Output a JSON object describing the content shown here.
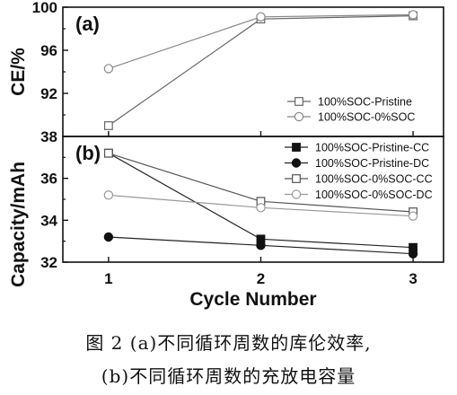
{
  "caption": {
    "line1": "图 2   (a)不同循环周数的库伦效率,",
    "line2": "(b)不同循环周数的充放电容量"
  },
  "chart_data": [
    {
      "panel": "(a)",
      "type": "line",
      "ylabel": "CE/%",
      "xlabel": "",
      "x": [
        1,
        2,
        3
      ],
      "xlim": [
        0.7,
        3.2
      ],
      "ylim": [
        88,
        100
      ],
      "yticks": [
        92,
        96,
        100
      ],
      "legend_position": "bottom-right",
      "series": [
        {
          "name": "100%SOC-Pristine",
          "marker": "open-square",
          "color": "#666666",
          "values": [
            89.0,
            98.9,
            99.2
          ]
        },
        {
          "name": "100%SOC-0%SOC",
          "marker": "open-circle",
          "color": "#888888",
          "values": [
            94.3,
            99.1,
            99.3
          ]
        }
      ]
    },
    {
      "panel": "(b)",
      "type": "line",
      "ylabel": "Capacity/mAh",
      "xlabel": "Cycle Number",
      "x": [
        1,
        2,
        3
      ],
      "xticks": [
        1,
        2,
        3
      ],
      "xlim": [
        0.7,
        3.2
      ],
      "ylim": [
        32,
        38
      ],
      "yticks": [
        32,
        34,
        36,
        38
      ],
      "legend_position": "top-right",
      "series": [
        {
          "name": "100%SOC-Pristine-CC",
          "marker": "filled-square",
          "color": "#222222",
          "values": [
            37.2,
            33.1,
            32.7
          ]
        },
        {
          "name": "100%SOC-Pristine-DC",
          "marker": "filled-circle",
          "color": "#222222",
          "values": [
            33.2,
            32.8,
            32.4
          ]
        },
        {
          "name": "100%SOC-0%SOC-CC",
          "marker": "open-square",
          "color": "#555555",
          "values": [
            37.2,
            34.9,
            34.4
          ]
        },
        {
          "name": "100%SOC-0%SOC-DC",
          "marker": "open-circle",
          "color": "#999999",
          "values": [
            35.2,
            34.6,
            34.2
          ]
        }
      ]
    }
  ]
}
